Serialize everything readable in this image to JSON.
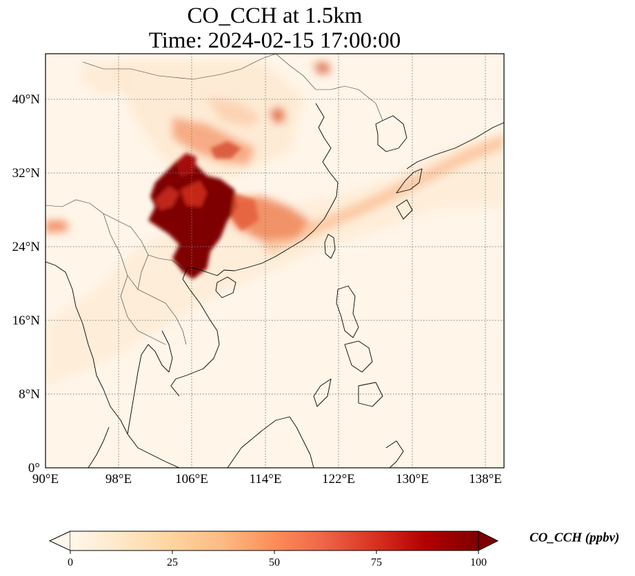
{
  "title": {
    "line1": "CO_CCH at 1.5km",
    "line2": "Time: 2024-02-15 17:00:00"
  },
  "map": {
    "lon_range": [
      90,
      140
    ],
    "lat_range": [
      0,
      44
    ],
    "x_ticks": [
      "90°E",
      "98°E",
      "106°E",
      "114°E",
      "122°E",
      "130°E",
      "138°E"
    ],
    "y_ticks": [
      "0°",
      "8°N",
      "16°N",
      "24°N",
      "32°N",
      "40°N"
    ],
    "gridlines": "dotted",
    "coastlines": true,
    "borders": true
  },
  "colorbar": {
    "label": "CO_CCH (ppbv)",
    "colormap": "OrRd",
    "ticks": [
      "0",
      "25",
      "50",
      "75",
      "100"
    ],
    "range": [
      0,
      100
    ],
    "extend": "both",
    "colors": [
      "#fff7ec",
      "#fee8c8",
      "#fdd49e",
      "#fdbb84",
      "#fc8d59",
      "#ef6548",
      "#d7301f",
      "#b30000",
      "#7f0000"
    ]
  }
}
